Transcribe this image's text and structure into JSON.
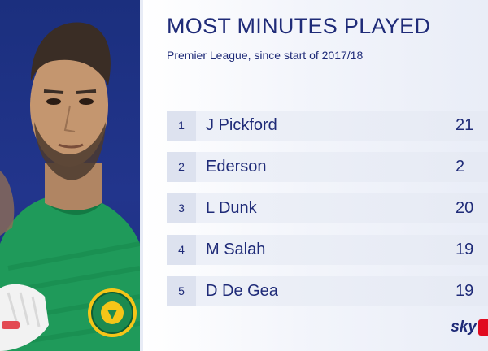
{
  "title": "MOST MINUTES PLAYED",
  "subtitle": "Premier League, since start of 2017/18",
  "rankings": [
    {
      "rank": "1",
      "name": "J Pickford",
      "minutes": "21"
    },
    {
      "rank": "2",
      "name": "Ederson",
      "minutes": "2"
    },
    {
      "rank": "3",
      "name": "L Dunk",
      "minutes": "20"
    },
    {
      "rank": "4",
      "name": "M Salah",
      "minutes": "19"
    },
    {
      "rank": "5",
      "name": "D De Gea",
      "minutes": "19"
    }
  ],
  "logo": {
    "text": "sky"
  },
  "colors": {
    "brand_navy": "#1f2b78",
    "panel_blue": "#22358c",
    "kit_green": "#1f9a5a",
    "sky_red": "#e10a1f"
  },
  "icons": [
    "player-photo",
    "club-crest",
    "goalkeeper-glove",
    "sky-sports-logo"
  ]
}
